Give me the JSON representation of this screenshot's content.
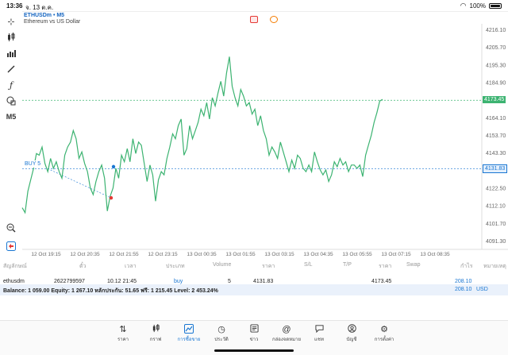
{
  "status": {
    "time": "13:36",
    "date": "จ. 13 ต.ค.",
    "battery": "100%"
  },
  "toolbar": {
    "timeframe": "M5"
  },
  "chart": {
    "symbol": "ETHUSDm • M5",
    "description": "Ethereum vs US Dollar",
    "current_price": "4173.45",
    "entry_price": "4131.83",
    "buy_label": "BUY 5",
    "accent": "#1976d2",
    "line_color": "#3cb371"
  },
  "chart_data": {
    "type": "line",
    "x_tick_labels": [
      "12 Oct 19:15",
      "12 Oct 20:35",
      "12 Oct 21:55",
      "12 Oct 23:15",
      "13 Oct 00:35",
      "13 Oct 01:55",
      "13 Oct 03:15",
      "13 Oct 04:35",
      "13 Oct 05:55",
      "13 Oct 07:15",
      "13 Oct 08:35"
    ],
    "y_tick_labels": [
      "4216.10",
      "4205.70",
      "4195.30",
      "4184.90",
      "4174.50",
      "4164.10",
      "4153.70",
      "4143.30",
      "4132.90",
      "4122.50",
      "4112.10",
      "4101.70",
      "4091.30"
    ],
    "ylim": [
      4087,
      4220
    ],
    "y": [
      4108,
      4105,
      4118,
      4125,
      4132,
      4141,
      4140,
      4145,
      4135,
      4130,
      4138,
      4132,
      4136,
      4130,
      4126,
      4140,
      4145,
      4148,
      4155,
      4150,
      4138,
      4142,
      4135,
      4130,
      4120,
      4116,
      4124,
      4130,
      4134,
      4126,
      4106,
      4115,
      4120,
      4132,
      4126,
      4140,
      4136,
      4144,
      4136,
      4150,
      4141,
      4148,
      4146,
      4135,
      4124,
      4134,
      4128,
      4112,
      4125,
      4130,
      4128,
      4138,
      4145,
      4153,
      4150,
      4158,
      4162,
      4140,
      4144,
      4158,
      4150,
      4155,
      4160,
      4168,
      4164,
      4172,
      4162,
      4175,
      4170,
      4178,
      4185,
      4176,
      4190,
      4200,
      4182,
      4175,
      4170,
      4180,
      4176,
      4170,
      4172,
      4165,
      4168,
      4158,
      4164,
      4155,
      4150,
      4140,
      4145,
      4142,
      4138,
      4148,
      4142,
      4136,
      4130,
      4137,
      4132,
      4140,
      4138,
      4132,
      4130,
      4134,
      4130,
      4142,
      4136,
      4131,
      4128,
      4131,
      4124,
      4128,
      4136,
      4133,
      4138,
      4134,
      4136,
      4130,
      4134,
      4134,
      4132,
      4134,
      4127,
      4140,
      4146,
      4152,
      4160,
      4166,
      4173,
      4174
    ]
  },
  "table": {
    "headers": [
      "สัญลักษณ์",
      "ตั๋ว",
      "เวลา",
      "ประเภท",
      "Volume",
      "ราคา",
      "S/L",
      "T/P",
      "ราคา",
      "Swap",
      "กำไร",
      "หมายเหตุ"
    ],
    "row": {
      "symbol": "ethusdm",
      "ticket": "2622799597",
      "time": "10.12 21:45",
      "type": "buy",
      "volume": "5",
      "open_price": "4131.83",
      "current_price": "4173.45",
      "profit": "208.10"
    },
    "balance_text": "Balance: 1 059.00 Equity: 1 267.10 หลักประกัน: 51.65 ฟรี: 1 215.45 Level: 2 453.24%",
    "balance_value": "208.10",
    "currency": "USD"
  },
  "nav": {
    "items": [
      {
        "label": "ราคา",
        "icon": "arrows-icon"
      },
      {
        "label": "กราฟ",
        "icon": "candles-icon"
      },
      {
        "label": "การซื้อขาย",
        "icon": "trade-chart-icon"
      },
      {
        "label": "ประวัติ",
        "icon": "history-icon"
      },
      {
        "label": "ข่าว",
        "icon": "news-icon"
      },
      {
        "label": "กล่องจดหมาย",
        "icon": "at-icon"
      },
      {
        "label": "แชท",
        "icon": "chat-icon"
      },
      {
        "label": "บัญชี",
        "icon": "account-icon"
      },
      {
        "label": "การตั้งค่า",
        "icon": "gear-icon"
      }
    ]
  }
}
